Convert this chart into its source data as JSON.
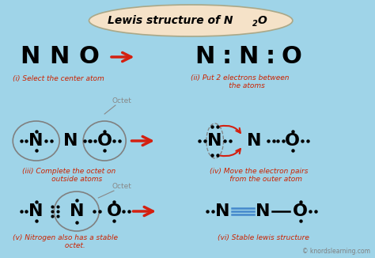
{
  "bg_color": "#9fd4e8",
  "title_bg": "#f5e2c8",
  "title_border": "#aaa888",
  "red_color": "#d42010",
  "blue_color": "#4488cc",
  "black_color": "#111111",
  "italic_red": "#cc2200",
  "gray_color": "#888888",
  "watermark": "© knordslearning.com",
  "title_parts": [
    "Lewis structure of N",
    "2",
    "O"
  ]
}
